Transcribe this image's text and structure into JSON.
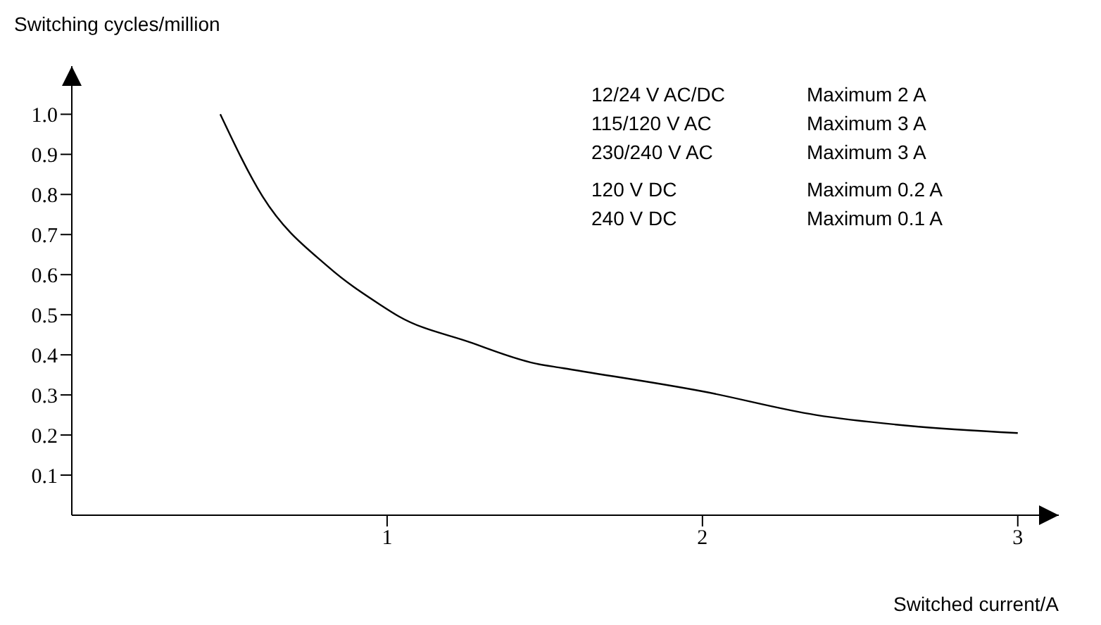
{
  "chart_data": {
    "type": "line",
    "ylabel": "Switching cycles/million",
    "xlabel": "Switched current/A",
    "x": [
      0.471,
      0.605,
      0.814,
      0.978,
      1.037,
      1.26,
      1.467,
      1.557,
      2.0,
      2.36,
      2.655,
      3.0
    ],
    "series": [
      {
        "color": "#000000",
        "values": [
          1.0,
          0.795,
          0.619,
          0.525,
          0.496,
          0.432,
          0.379,
          0.367,
          0.309,
          0.25,
          0.223,
          0.205
        ]
      }
    ],
    "xlim": [
      0,
      3.13
    ],
    "xticks": [
      1,
      2,
      3
    ],
    "ylim": [
      0,
      1.12
    ],
    "yticks": [
      0.1,
      0.2,
      0.3,
      0.4,
      0.5,
      0.6,
      0.7,
      0.8,
      0.9,
      {
        "value": 1,
        "label": "1.0"
      }
    ],
    "grid": false,
    "legend": false,
    "marker": "none",
    "line_style": "solid",
    "annotations": [
      "12/24 V AC/DC",
      "Maximum 2 A",
      "115/120 V AC",
      "Maximum 3 A",
      "230/240 V AC",
      "Maximum 3 A",
      "120 V DC",
      "Maximum 0.2 A",
      "240 V DC",
      "Maximum 0.1 A"
    ]
  }
}
